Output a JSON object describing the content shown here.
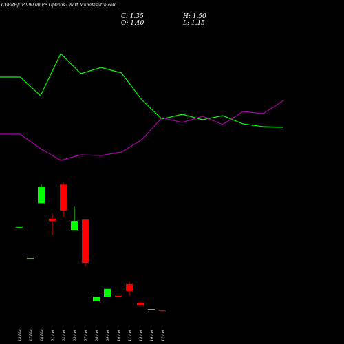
{
  "chart_data": [
    {
      "type": "candlestick",
      "title": "CGBREJCP 990.00 PE Options  Chart Munafasutra.com",
      "ohlc_labels": [
        "C: 1.35",
        "H: 1.50",
        "O: 1.40",
        "L: 1.15"
      ],
      "categories": [
        "13 Mar",
        "27 Mar",
        "28 Mar",
        "01 Apr",
        "02 Apr",
        "03 Apr",
        "07 Apr",
        "08 Apr",
        "09 Apr",
        "10 Apr",
        "11 Apr",
        "15 Apr",
        "16 Apr",
        "17 Apr"
      ],
      "open": [
        20.7,
        13.5,
        26.2,
        22.6,
        30.5,
        19.9,
        22.4,
        3.5,
        4.6,
        4.8,
        7.5,
        3.2,
        1.6,
        1.4
      ],
      "high": [
        20.7,
        13.5,
        30.5,
        23.8,
        31.0,
        25.4,
        22.4,
        4.6,
        6.4,
        4.8,
        8.0,
        3.2,
        1.75,
        1.5
      ],
      "low": [
        20.7,
        13.5,
        26.2,
        18.9,
        23.0,
        19.9,
        11.6,
        3.5,
        4.6,
        4.5,
        4.8,
        2.5,
        1.6,
        1.15
      ],
      "close": [
        20.7,
        13.5,
        29.9,
        22.1,
        24.5,
        22.1,
        12.4,
        4.6,
        6.4,
        4.5,
        5.9,
        2.5,
        1.75,
        1.35
      ],
      "up_color": "#00ff00",
      "down_color": "#ff0000",
      "ylim": [
        0,
        70
      ]
    },
    {
      "type": "line",
      "x": [
        0,
        1,
        2,
        3,
        4,
        5,
        6,
        7,
        8,
        9,
        10,
        11,
        12,
        13,
        14
      ],
      "xlim": [
        0,
        14
      ],
      "ylim": [
        0,
        100
      ],
      "series": [
        {
          "color": "#00ff00",
          "values": [
            74,
            74,
            60.5,
            91,
            76.5,
            81,
            77,
            57.5,
            43.5,
            47,
            43,
            46,
            40,
            38,
            37.5
          ]
        },
        {
          "color": "#b000b0",
          "values": [
            32.5,
            32.5,
            22,
            13.5,
            17.5,
            17,
            19.5,
            28.5,
            44.5,
            41,
            45.5,
            39.5,
            49,
            47.5,
            57
          ]
        }
      ]
    }
  ]
}
